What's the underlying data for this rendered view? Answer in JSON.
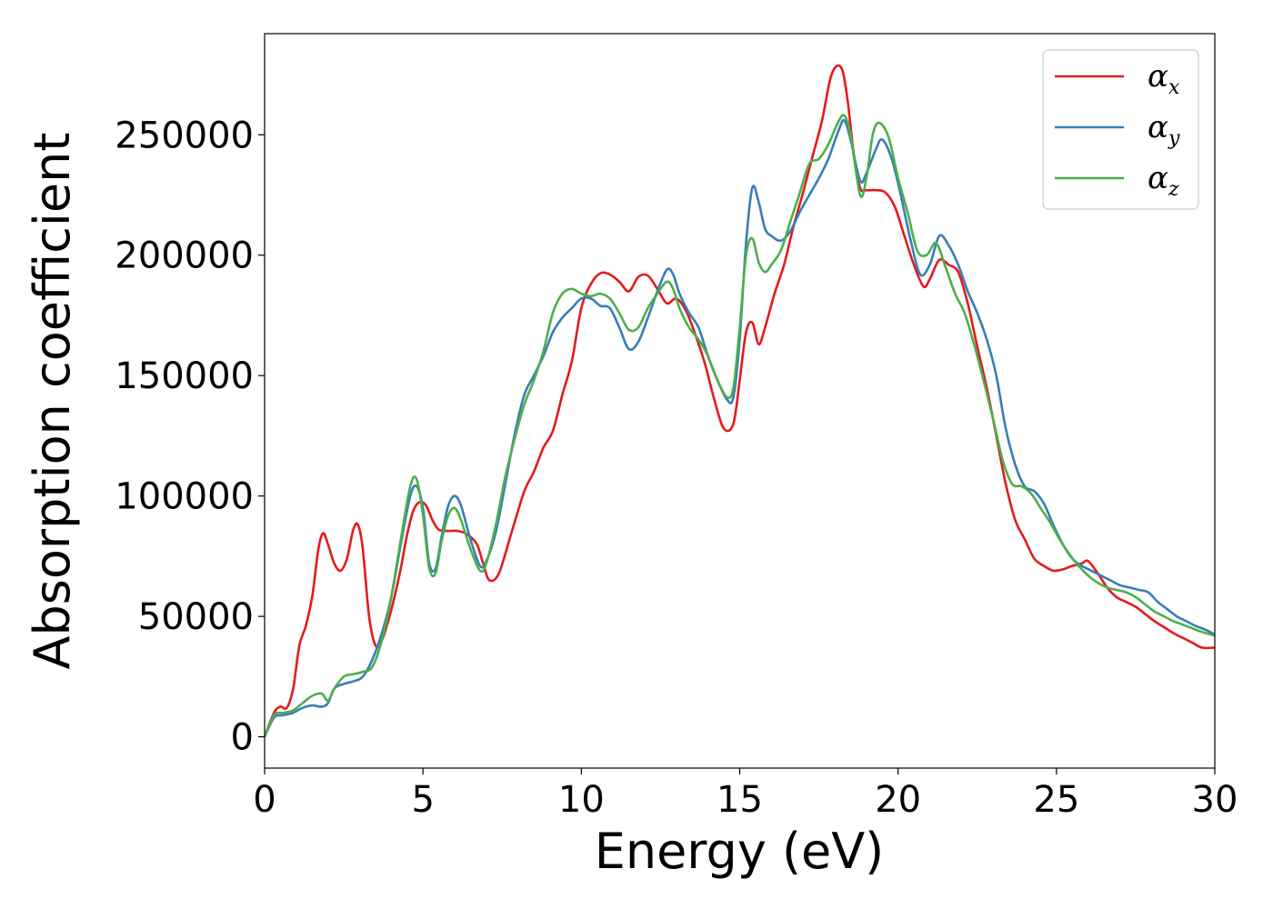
{
  "chart_data": {
    "type": "line",
    "xlabel": "Energy (eV)",
    "ylabel": "Absorption coefficient",
    "xlim": [
      0,
      30
    ],
    "ylim": [
      -13000,
      292000
    ],
    "xticks": [
      0,
      5,
      10,
      15,
      20,
      25,
      30
    ],
    "xtick_labels": [
      "0",
      "5",
      "10",
      "15",
      "20",
      "25",
      "30"
    ],
    "yticks": [
      0,
      50000,
      100000,
      150000,
      200000,
      250000
    ],
    "ytick_labels": [
      "0",
      "50000",
      "100000",
      "150000",
      "200000",
      "250000"
    ],
    "grid": false,
    "legend_position": "top-right",
    "series": [
      {
        "name": "α",
        "subscript": "x",
        "color": "#e41a1c",
        "x": [
          0,
          0.3,
          0.5,
          0.7,
          0.9,
          1.1,
          1.3,
          1.5,
          1.7,
          1.85,
          2.0,
          2.2,
          2.4,
          2.6,
          2.8,
          2.95,
          3.1,
          3.3,
          3.5,
          3.7,
          3.9,
          4.1,
          4.3,
          4.5,
          4.7,
          4.9,
          5.1,
          5.3,
          5.5,
          5.8,
          6.1,
          6.4,
          6.7,
          6.9,
          7.1,
          7.4,
          7.8,
          8.2,
          8.5,
          8.8,
          9.1,
          9.4,
          9.7,
          10.0,
          10.3,
          10.6,
          10.9,
          11.2,
          11.5,
          11.8,
          12.1,
          12.4,
          12.7,
          13.0,
          13.3,
          13.6,
          13.9,
          14.2,
          14.5,
          14.8,
          15.0,
          15.2,
          15.4,
          15.6,
          15.8,
          16.1,
          16.4,
          16.7,
          17.0,
          17.3,
          17.6,
          17.9,
          18.2,
          18.4,
          18.6,
          18.8,
          19.0,
          19.3,
          19.6,
          19.9,
          20.2,
          20.5,
          20.8,
          21.0,
          21.3,
          21.6,
          21.9,
          22.2,
          22.5,
          22.8,
          23.1,
          23.4,
          23.7,
          24.0,
          24.3,
          24.6,
          24.9,
          25.2,
          25.5,
          25.8,
          26.0,
          26.3,
          26.6,
          26.9,
          27.2,
          27.5,
          27.8,
          28.1,
          28.4,
          28.7,
          29.0,
          29.3,
          29.6,
          30.0
        ],
        "y": [
          0,
          10000,
          12500,
          12000,
          20000,
          38000,
          46000,
          58000,
          78000,
          84500,
          80000,
          72000,
          69000,
          74000,
          86000,
          88000,
          78000,
          50000,
          38000,
          40000,
          48000,
          58000,
          70000,
          84000,
          94000,
          97500,
          96000,
          90000,
          86000,
          85500,
          85500,
          84000,
          80000,
          72000,
          65000,
          68000,
          85000,
          102000,
          110000,
          120000,
          127000,
          142000,
          156000,
          178000,
          188000,
          192500,
          192000,
          189000,
          185000,
          191000,
          191500,
          186000,
          180000,
          182000,
          177000,
          167000,
          155000,
          140000,
          128000,
          130000,
          148000,
          168000,
          172000,
          163000,
          170000,
          184000,
          196000,
          212000,
          226000,
          241000,
          256000,
          275000,
          278000,
          265000,
          242000,
          228000,
          227000,
          227000,
          226000,
          220000,
          208000,
          196000,
          187000,
          190000,
          198000,
          196000,
          193000,
          180000,
          162000,
          145000,
          125000,
          105000,
          90000,
          82000,
          74000,
          71000,
          69000,
          69500,
          71000,
          72000,
          73000,
          68000,
          62000,
          58000,
          56000,
          54000,
          51000,
          48000,
          45500,
          43000,
          41000,
          39000,
          37000,
          37000
        ]
      },
      {
        "name": "α",
        "subscript": "y",
        "color": "#377eb8",
        "x": [
          0,
          0.3,
          0.6,
          0.9,
          1.2,
          1.5,
          1.8,
          2.0,
          2.2,
          2.5,
          2.8,
          3.1,
          3.4,
          3.7,
          4.0,
          4.3,
          4.6,
          4.8,
          5.0,
          5.2,
          5.4,
          5.6,
          5.8,
          6.0,
          6.2,
          6.5,
          6.8,
          7.0,
          7.3,
          7.6,
          7.9,
          8.2,
          8.5,
          8.8,
          9.1,
          9.4,
          9.7,
          10.0,
          10.3,
          10.6,
          10.9,
          11.2,
          11.5,
          11.8,
          12.1,
          12.4,
          12.7,
          12.9,
          13.1,
          13.4,
          13.7,
          14.0,
          14.3,
          14.6,
          14.8,
          15.0,
          15.2,
          15.4,
          15.6,
          15.8,
          16.0,
          16.3,
          16.6,
          16.9,
          17.2,
          17.5,
          17.8,
          18.1,
          18.3,
          18.5,
          18.8,
          19.0,
          19.3,
          19.5,
          19.8,
          20.1,
          20.4,
          20.7,
          21.0,
          21.3,
          21.6,
          21.9,
          22.2,
          22.5,
          22.8,
          23.1,
          23.4,
          23.7,
          24.0,
          24.3,
          24.6,
          24.9,
          25.2,
          25.5,
          25.8,
          26.1,
          26.4,
          26.7,
          27.0,
          27.3,
          27.6,
          27.9,
          28.2,
          28.5,
          28.8,
          29.1,
          29.4,
          29.7,
          30.0
        ],
        "y": [
          0,
          8000,
          9000,
          10000,
          12000,
          13000,
          12500,
          14000,
          20000,
          22000,
          23000,
          25000,
          32000,
          43000,
          58000,
          80000,
          100000,
          104000,
          95000,
          72000,
          70000,
          84000,
          96000,
          100000,
          96000,
          82000,
          71000,
          73000,
          85000,
          105000,
          126000,
          142000,
          150000,
          158000,
          168000,
          174000,
          178000,
          182000,
          182000,
          179000,
          178000,
          170000,
          161000,
          164000,
          174000,
          185000,
          194000,
          192000,
          184000,
          176000,
          170000,
          158000,
          148000,
          140000,
          141000,
          165000,
          205000,
          228000,
          222000,
          211000,
          208000,
          206000,
          210000,
          218000,
          225000,
          232000,
          240000,
          251000,
          256000,
          248000,
          231000,
          234000,
          244000,
          248000,
          240000,
          224000,
          206000,
          192000,
          196000,
          208000,
          204000,
          196000,
          185000,
          176000,
          165000,
          150000,
          128000,
          113000,
          104000,
          102000,
          97000,
          88000,
          80000,
          74000,
          71000,
          69000,
          67000,
          65000,
          63000,
          62000,
          61000,
          60000,
          56000,
          53000,
          50000,
          48000,
          46000,
          44500,
          42500
        ]
      },
      {
        "name": "α",
        "subscript": "z",
        "color": "#4daf4a",
        "x": [
          0,
          0.3,
          0.6,
          0.9,
          1.2,
          1.5,
          1.8,
          2.0,
          2.2,
          2.5,
          2.8,
          3.1,
          3.4,
          3.7,
          4.0,
          4.3,
          4.6,
          4.8,
          5.0,
          5.2,
          5.4,
          5.6,
          5.8,
          6.0,
          6.2,
          6.5,
          6.8,
          7.0,
          7.3,
          7.6,
          7.9,
          8.2,
          8.5,
          8.8,
          9.1,
          9.4,
          9.7,
          10.0,
          10.3,
          10.6,
          10.9,
          11.2,
          11.5,
          11.8,
          12.1,
          12.4,
          12.7,
          12.9,
          13.1,
          13.4,
          13.7,
          14.0,
          14.3,
          14.6,
          14.8,
          15.0,
          15.2,
          15.4,
          15.6,
          15.8,
          16.0,
          16.3,
          16.6,
          16.9,
          17.2,
          17.5,
          17.8,
          18.1,
          18.3,
          18.5,
          18.8,
          19.0,
          19.2,
          19.4,
          19.7,
          20.0,
          20.3,
          20.6,
          20.9,
          21.2,
          21.5,
          21.8,
          22.1,
          22.4,
          22.7,
          23.0,
          23.3,
          23.6,
          23.9,
          24.2,
          24.5,
          24.8,
          25.1,
          25.4,
          25.7,
          26.0,
          26.3,
          26.6,
          26.9,
          27.2,
          27.5,
          27.8,
          28.1,
          28.4,
          28.7,
          29.0,
          29.3,
          29.6,
          30.0
        ],
        "y": [
          0,
          9000,
          10000,
          11000,
          14000,
          17000,
          18000,
          15000,
          20000,
          25000,
          26000,
          27000,
          29000,
          40000,
          58000,
          82000,
          104000,
          107000,
          92000,
          70000,
          68000,
          82000,
          92000,
          95000,
          90000,
          78000,
          69000,
          72000,
          88000,
          108000,
          124000,
          138000,
          148000,
          160000,
          176000,
          184000,
          186000,
          184000,
          183000,
          184000,
          182000,
          176000,
          169000,
          170000,
          178000,
          184000,
          189000,
          186000,
          178000,
          170000,
          165000,
          158000,
          148000,
          141000,
          145000,
          170000,
          200000,
          207000,
          197000,
          193000,
          196000,
          202000,
          214000,
          226000,
          238000,
          240000,
          246000,
          255000,
          258000,
          250000,
          225000,
          232000,
          250000,
          255000,
          249000,
          232000,
          218000,
          202000,
          200000,
          205000,
          195000,
          184000,
          176000,
          163000,
          148000,
          132000,
          115000,
          105000,
          104000,
          101000,
          95000,
          89000,
          82000,
          76000,
          71000,
          67000,
          64000,
          62000,
          61000,
          60000,
          58000,
          55000,
          52000,
          50000,
          48000,
          46500,
          45000,
          43500,
          42000
        ]
      }
    ]
  }
}
